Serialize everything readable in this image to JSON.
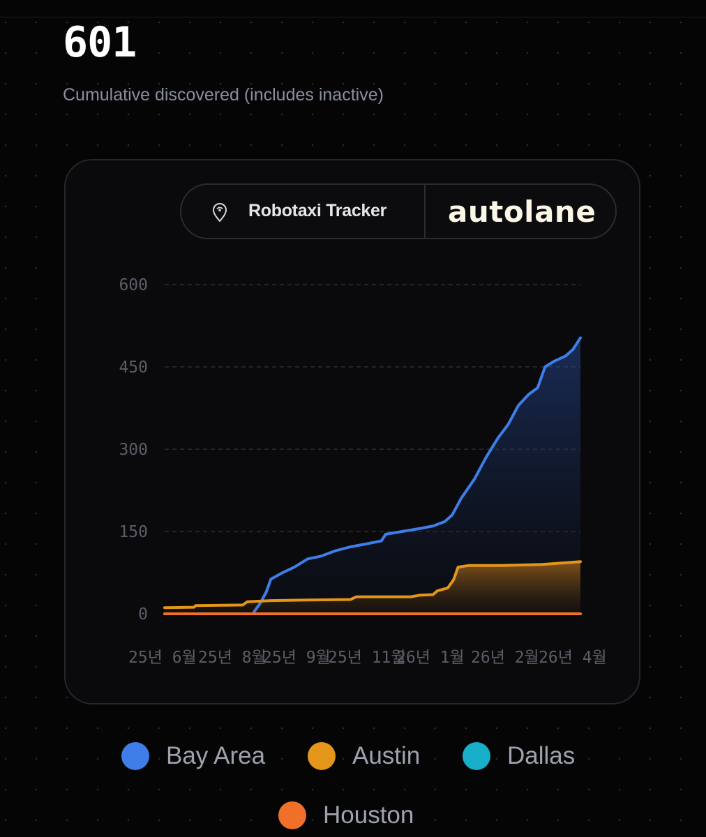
{
  "headline": {
    "count": "601",
    "subtitle": "Cumulative discovered (includes inactive)"
  },
  "brand": {
    "tracker_label": "Robotaxi Tracker",
    "logo_text": "autolane",
    "pin_icon": "location-pin-icon"
  },
  "colors": {
    "bay_area": "#3f7ee8",
    "austin": "#e3961a",
    "dallas": "#17afc9",
    "houston": "#f0702a",
    "background": "#050506",
    "card": "#0a0a0c"
  },
  "chart_data": {
    "type": "area",
    "title": "",
    "xlabel": "",
    "ylabel": "",
    "ylim": [
      0,
      600
    ],
    "y_ticks": [
      600,
      450,
      300,
      150,
      0
    ],
    "x_ticks": [
      "25년 6월",
      "25년 8월",
      "25년 9월",
      "25년 11월",
      "26년 1월",
      "26년 2월",
      "26년 4월"
    ],
    "x_range": [
      "2025-06-01",
      "2026-03-10"
    ],
    "grid": true,
    "legend_position": "bottom",
    "series": [
      {
        "name": "Bay Area",
        "color": "#3f7ee8",
        "points": [
          [
            "2025-06-01",
            0
          ],
          [
            "2025-07-31",
            0
          ],
          [
            "2025-08-01",
            5
          ],
          [
            "2025-08-05",
            20
          ],
          [
            "2025-08-09",
            40
          ],
          [
            "2025-08-12",
            63
          ],
          [
            "2025-08-20",
            75
          ],
          [
            "2025-08-28",
            85
          ],
          [
            "2025-09-06",
            100
          ],
          [
            "2025-09-15",
            105
          ],
          [
            "2025-09-25",
            115
          ],
          [
            "2025-10-05",
            122
          ],
          [
            "2025-10-15",
            127
          ],
          [
            "2025-10-26",
            133
          ],
          [
            "2025-10-29",
            145
          ],
          [
            "2025-11-09",
            150
          ],
          [
            "2025-11-20",
            155
          ],
          [
            "2025-11-30",
            160
          ],
          [
            "2025-12-08",
            168
          ],
          [
            "2025-12-13",
            180
          ],
          [
            "2025-12-19",
            210
          ],
          [
            "2025-12-28",
            245
          ],
          [
            "2026-01-05",
            285
          ],
          [
            "2026-01-13",
            320
          ],
          [
            "2026-01-20",
            345
          ],
          [
            "2026-01-27",
            380
          ],
          [
            "2026-02-03",
            400
          ],
          [
            "2026-02-09",
            412
          ],
          [
            "2026-02-14",
            450
          ],
          [
            "2026-02-20",
            460
          ],
          [
            "2026-02-28",
            470
          ],
          [
            "2026-03-05",
            482
          ],
          [
            "2026-03-10",
            503
          ]
        ]
      },
      {
        "name": "Austin",
        "color": "#e3961a",
        "points": [
          [
            "2025-06-01",
            11
          ],
          [
            "2025-06-21",
            12
          ],
          [
            "2025-06-22",
            15
          ],
          [
            "2025-07-24",
            16
          ],
          [
            "2025-07-27",
            22
          ],
          [
            "2025-08-12",
            24
          ],
          [
            "2025-09-05",
            25
          ],
          [
            "2025-10-05",
            26
          ],
          [
            "2025-10-09",
            31
          ],
          [
            "2025-11-15",
            31
          ],
          [
            "2025-11-21",
            34
          ],
          [
            "2025-11-30",
            35
          ],
          [
            "2025-12-03",
            42
          ],
          [
            "2025-12-10",
            47
          ],
          [
            "2025-12-14",
            62
          ],
          [
            "2025-12-17",
            85
          ],
          [
            "2025-12-24",
            88
          ],
          [
            "2026-01-15",
            88
          ],
          [
            "2026-02-12",
            90
          ],
          [
            "2026-03-10",
            95
          ]
        ]
      },
      {
        "name": "Dallas",
        "color": "#17afc9",
        "points": [
          [
            "2025-06-01",
            0
          ],
          [
            "2026-03-10",
            0
          ]
        ]
      },
      {
        "name": "Houston",
        "color": "#f0702a",
        "points": [
          [
            "2025-06-01",
            0
          ],
          [
            "2026-03-10",
            0
          ]
        ]
      }
    ]
  }
}
